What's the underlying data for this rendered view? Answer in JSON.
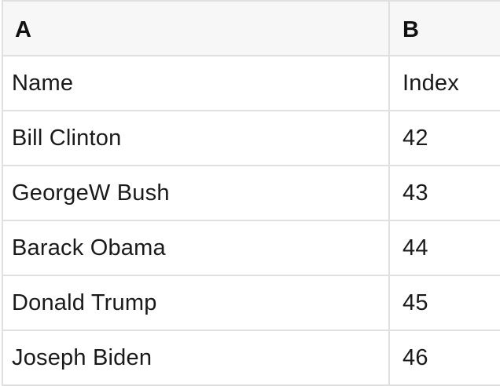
{
  "table": {
    "columns": [
      {
        "key": "A",
        "header": "A"
      },
      {
        "key": "B",
        "header": "B"
      }
    ],
    "rows": [
      {
        "name": "Name",
        "index": "Index"
      },
      {
        "name": "Bill Clinton",
        "index": "42"
      },
      {
        "name": "GeorgeW Bush",
        "index": "43"
      },
      {
        "name": "Barack Obama",
        "index": "44"
      },
      {
        "name": "Donald Trump",
        "index": "45"
      },
      {
        "name": "Joseph Biden",
        "index": "46"
      }
    ]
  },
  "colors": {
    "header_bg": "#f7f7f7",
    "grid_border": "#e0e0e0",
    "text": "#1a1a1a"
  }
}
